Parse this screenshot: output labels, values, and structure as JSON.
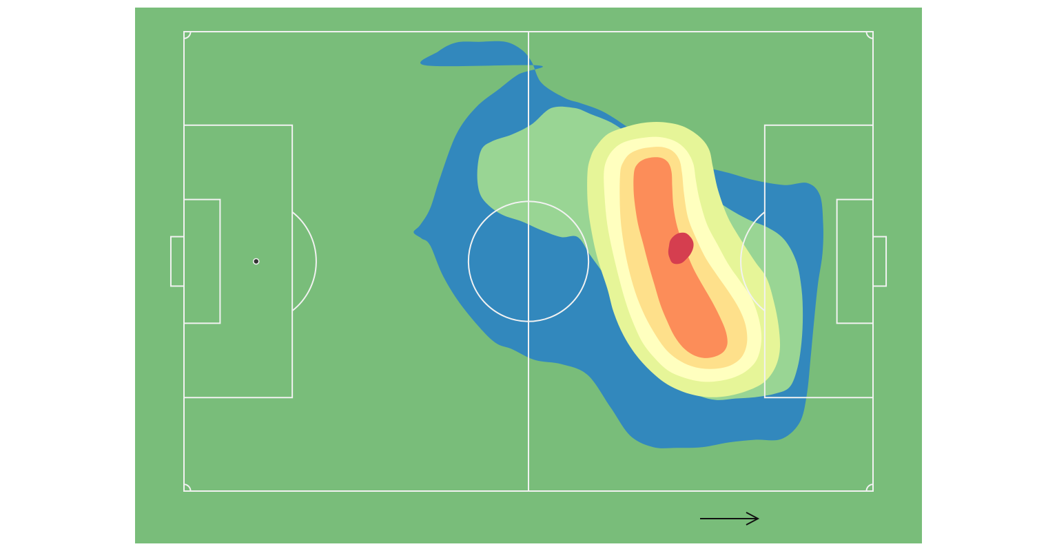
{
  "chart_data": {
    "type": "heatmap",
    "subtype": "kde-contour-on-football-pitch",
    "pitch": {
      "length_m": 105,
      "width_m": 68,
      "grass_color": "#79bd7a",
      "line_color": "#f2f2f2",
      "penalty_spot_color": "#333333"
    },
    "direction_of_play": "left-to-right",
    "levels": [
      {
        "level": 1,
        "color": "#3288bd"
      },
      {
        "level": 2,
        "color": "#99d594"
      },
      {
        "level": 3,
        "color": "#e6f598"
      },
      {
        "level": 4,
        "color": "#ffffbf"
      },
      {
        "level": 5,
        "color": "#fee08b"
      },
      {
        "level": 6,
        "color": "#fc8d59"
      },
      {
        "level": 7,
        "color": "#d53e4f"
      }
    ],
    "contours": [
      {
        "level": 1,
        "points": [
          [
            36.9,
            5.0
          ],
          [
            38.8,
            2.9
          ],
          [
            41.5,
            1.6
          ],
          [
            45.0,
            1.5
          ],
          [
            49.0,
            1.5
          ],
          [
            51.5,
            2.7
          ],
          [
            53.0,
            4.5
          ],
          [
            54.5,
            7.6
          ],
          [
            58.0,
            9.8
          ],
          [
            60.5,
            10.6
          ],
          [
            64.0,
            11.9
          ],
          [
            68.0,
            14.4
          ],
          [
            71.5,
            16.7
          ],
          [
            75.0,
            18.4
          ],
          [
            79.0,
            19.9
          ],
          [
            83.0,
            20.9
          ],
          [
            87.0,
            22.0
          ],
          [
            91.5,
            22.7
          ],
          [
            95.0,
            22.4
          ],
          [
            96.9,
            24.2
          ],
          [
            97.4,
            28.4
          ],
          [
            97.3,
            32.8
          ],
          [
            96.6,
            37.4
          ],
          [
            96.0,
            43.0
          ],
          [
            95.5,
            48.2
          ],
          [
            94.9,
            53.8
          ],
          [
            93.8,
            57.9
          ],
          [
            91.0,
            60.3
          ],
          [
            87.0,
            60.4
          ],
          [
            83.0,
            60.8
          ],
          [
            79.0,
            61.5
          ],
          [
            75.0,
            61.6
          ],
          [
            71.5,
            61.5
          ],
          [
            68.0,
            59.8
          ],
          [
            65.0,
            55.6
          ],
          [
            61.5,
            50.8
          ],
          [
            57.5,
            49.2
          ],
          [
            53.5,
            48.6
          ],
          [
            50.0,
            47.0
          ],
          [
            47.0,
            45.7
          ],
          [
            42.5,
            40.8
          ],
          [
            39.5,
            36.2
          ],
          [
            37.5,
            31.6
          ],
          [
            36.2,
            30.6
          ],
          [
            35.0,
            29.7
          ],
          [
            36.0,
            28.6
          ],
          [
            37.5,
            26.2
          ],
          [
            39.0,
            21.7
          ],
          [
            41.5,
            15.2
          ],
          [
            44.5,
            11.2
          ],
          [
            48.0,
            8.5
          ],
          [
            51.0,
            6.3
          ],
          [
            54.0,
            5.0
          ]
        ]
      },
      {
        "level": 2,
        "points": [
          [
            45.0,
            23.7
          ],
          [
            46.2,
            25.5
          ],
          [
            48.5,
            27.1
          ],
          [
            51.5,
            28.1
          ],
          [
            54.5,
            29.4
          ],
          [
            57.5,
            30.4
          ],
          [
            60.0,
            30.4
          ],
          [
            62.0,
            33.2
          ],
          [
            64.5,
            36.6
          ],
          [
            66.5,
            39.6
          ],
          [
            68.5,
            43.0
          ],
          [
            70.5,
            46.6
          ],
          [
            72.5,
            49.6
          ],
          [
            75.0,
            51.9
          ],
          [
            78.0,
            53.7
          ],
          [
            81.0,
            54.5
          ],
          [
            84.0,
            54.3
          ],
          [
            87.0,
            54.1
          ],
          [
            90.0,
            53.6
          ],
          [
            92.3,
            52.6
          ],
          [
            93.5,
            49.7
          ],
          [
            94.1,
            46.0
          ],
          [
            94.3,
            42.0
          ],
          [
            94.1,
            38.0
          ],
          [
            93.3,
            34.0
          ],
          [
            91.5,
            30.8
          ],
          [
            89.0,
            29.0
          ],
          [
            86.0,
            27.8
          ],
          [
            83.0,
            26.2
          ],
          [
            80.0,
            24.2
          ],
          [
            77.0,
            21.8
          ],
          [
            74.0,
            18.8
          ],
          [
            71.0,
            16.6
          ],
          [
            68.0,
            15.2
          ],
          [
            65.0,
            13.4
          ],
          [
            62.0,
            12.2
          ],
          [
            59.5,
            11.3
          ],
          [
            56.0,
            11.3
          ],
          [
            53.0,
            13.7
          ],
          [
            50.0,
            15.2
          ],
          [
            47.0,
            16.2
          ],
          [
            45.3,
            17.5
          ],
          [
            44.7,
            20.7
          ]
        ]
      },
      {
        "level": 3,
        "points": [
          [
            61.5,
            20.7
          ],
          [
            62.0,
            18.5
          ],
          [
            62.8,
            17.0
          ],
          [
            64.5,
            15.2
          ],
          [
            67.0,
            14.2
          ],
          [
            70.0,
            13.5
          ],
          [
            73.0,
            13.4
          ],
          [
            76.0,
            14.0
          ],
          [
            78.5,
            15.5
          ],
          [
            80.0,
            17.4
          ],
          [
            80.6,
            20.0
          ],
          [
            81.4,
            23.5
          ],
          [
            82.9,
            27.5
          ],
          [
            85.0,
            31.0
          ],
          [
            87.0,
            34.0
          ],
          [
            88.8,
            36.5
          ],
          [
            89.9,
            40.0
          ],
          [
            90.6,
            43.5
          ],
          [
            90.8,
            47.0
          ],
          [
            90.1,
            49.7
          ],
          [
            88.5,
            51.8
          ],
          [
            86.0,
            53.1
          ],
          [
            83.0,
            53.9
          ],
          [
            80.0,
            54.1
          ],
          [
            77.0,
            53.6
          ],
          [
            74.0,
            52.4
          ],
          [
            71.5,
            50.6
          ],
          [
            69.0,
            48.0
          ],
          [
            67.0,
            45.0
          ],
          [
            65.5,
            41.6
          ],
          [
            64.5,
            38.0
          ],
          [
            63.0,
            33.5
          ],
          [
            62.0,
            29.0
          ],
          [
            61.5,
            25.0
          ]
        ]
      },
      {
        "level": 4,
        "points": [
          [
            64.0,
            20.7
          ],
          [
            64.6,
            18.6
          ],
          [
            65.8,
            17.1
          ],
          [
            67.5,
            16.2
          ],
          [
            70.0,
            15.7
          ],
          [
            72.5,
            15.6
          ],
          [
            74.8,
            16.2
          ],
          [
            76.5,
            17.5
          ],
          [
            77.6,
            19.5
          ],
          [
            78.0,
            22.0
          ],
          [
            78.6,
            25.0
          ],
          [
            79.7,
            28.5
          ],
          [
            81.3,
            31.5
          ],
          [
            83.0,
            34.5
          ],
          [
            84.8,
            37.0
          ],
          [
            86.5,
            39.5
          ],
          [
            87.6,
            42.5
          ],
          [
            88.0,
            45.5
          ],
          [
            87.4,
            48.3
          ],
          [
            86.0,
            50.0
          ],
          [
            84.0,
            51.1
          ],
          [
            81.5,
            51.7
          ],
          [
            79.0,
            51.8
          ],
          [
            76.5,
            51.3
          ],
          [
            74.0,
            50.3
          ],
          [
            72.0,
            48.6
          ],
          [
            70.0,
            46.2
          ],
          [
            68.5,
            43.2
          ],
          [
            67.3,
            40.0
          ],
          [
            66.3,
            36.5
          ],
          [
            65.3,
            32.5
          ],
          [
            64.5,
            28.5
          ],
          [
            64.1,
            24.5
          ]
        ]
      },
      {
        "level": 5,
        "points": [
          [
            66.5,
            20.7
          ],
          [
            67.0,
            19.2
          ],
          [
            67.9,
            18.1
          ],
          [
            69.4,
            17.4
          ],
          [
            71.2,
            17.1
          ],
          [
            73.0,
            17.1
          ],
          [
            74.5,
            17.7
          ],
          [
            75.5,
            19.0
          ],
          [
            75.9,
            21.0
          ],
          [
            76.2,
            24.0
          ],
          [
            76.8,
            27.5
          ],
          [
            78.0,
            30.5
          ],
          [
            79.5,
            33.5
          ],
          [
            81.2,
            36.0
          ],
          [
            83.0,
            38.5
          ],
          [
            84.6,
            41.0
          ],
          [
            85.6,
            43.5
          ],
          [
            85.8,
            46.0
          ],
          [
            85.1,
            48.0
          ],
          [
            83.7,
            49.2
          ],
          [
            81.8,
            49.8
          ],
          [
            79.5,
            49.9
          ],
          [
            77.3,
            49.5
          ],
          [
            75.2,
            48.5
          ],
          [
            73.4,
            47.0
          ],
          [
            71.8,
            44.8
          ],
          [
            70.3,
            42.2
          ],
          [
            69.0,
            39.2
          ],
          [
            68.0,
            36.0
          ],
          [
            67.2,
            32.5
          ],
          [
            66.6,
            28.5
          ],
          [
            66.4,
            24.5
          ]
        ]
      },
      {
        "level": 6,
        "points": [
          [
            68.6,
            20.7
          ],
          [
            69.1,
            19.6
          ],
          [
            70.1,
            18.9
          ],
          [
            71.5,
            18.6
          ],
          [
            72.8,
            18.7
          ],
          [
            73.8,
            19.4
          ],
          [
            74.3,
            20.8
          ],
          [
            74.4,
            23.0
          ],
          [
            74.6,
            26.0
          ],
          [
            75.2,
            29.0
          ],
          [
            76.3,
            32.0
          ],
          [
            77.6,
            35.0
          ],
          [
            79.0,
            37.5
          ],
          [
            80.5,
            40.0
          ],
          [
            81.8,
            42.5
          ],
          [
            82.6,
            44.5
          ],
          [
            82.8,
            46.2
          ],
          [
            82.2,
            47.4
          ],
          [
            80.9,
            48.1
          ],
          [
            79.2,
            48.3
          ],
          [
            77.5,
            47.8
          ],
          [
            76.0,
            46.7
          ],
          [
            74.7,
            45.0
          ],
          [
            73.6,
            42.8
          ],
          [
            72.6,
            40.4
          ],
          [
            71.7,
            37.5
          ],
          [
            70.8,
            34.5
          ],
          [
            70.0,
            31.5
          ],
          [
            69.2,
            28.5
          ],
          [
            68.7,
            25.5
          ],
          [
            68.5,
            23.0
          ]
        ]
      },
      {
        "level": 7,
        "points": [
          [
            73.9,
            31.8
          ],
          [
            74.1,
            30.9
          ],
          [
            74.7,
            30.2
          ],
          [
            75.5,
            29.8
          ],
          [
            76.4,
            29.8
          ],
          [
            77.1,
            30.3
          ],
          [
            77.6,
            31.1
          ],
          [
            77.6,
            32.0
          ],
          [
            77.2,
            32.9
          ],
          [
            76.6,
            33.6
          ],
          [
            75.9,
            34.2
          ],
          [
            75.1,
            34.4
          ],
          [
            74.4,
            34.2
          ],
          [
            74.0,
            33.5
          ],
          [
            73.8,
            32.7
          ]
        ]
      }
    ]
  }
}
